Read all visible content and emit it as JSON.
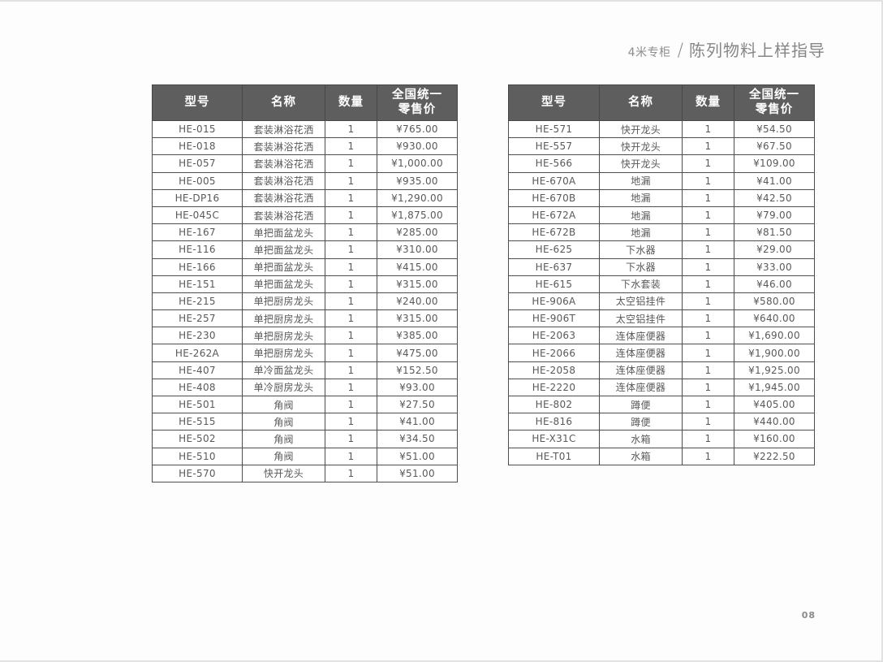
{
  "header": {
    "category": "4米专柜",
    "separator": "/",
    "title": "陈列物料上样指导"
  },
  "page_number": "08",
  "columns": {
    "model": "型号",
    "name": "名称",
    "qty": "数量",
    "price_line1": "全国统一",
    "price_line2": "零售价"
  },
  "colors": {
    "header_bg": "#5e5e5e",
    "header_text": "#ffffff",
    "grid_border": "#4d4d4d",
    "body_text": "#595959",
    "muted_text": "#8d8d8d"
  },
  "tables": [
    {
      "name": "left",
      "rows": [
        [
          "HE-015",
          "套装淋浴花洒",
          "1",
          "¥765.00"
        ],
        [
          "HE-018",
          "套装淋浴花洒",
          "1",
          "¥930.00"
        ],
        [
          "HE-057",
          "套装淋浴花洒",
          "1",
          "¥1,000.00"
        ],
        [
          "HE-005",
          "套装淋浴花洒",
          "1",
          "¥935.00"
        ],
        [
          "HE-DP16",
          "套装淋浴花洒",
          "1",
          "¥1,290.00"
        ],
        [
          "HE-045C",
          "套装淋浴花洒",
          "1",
          "¥1,875.00"
        ],
        [
          "HE-167",
          "单把面盆龙头",
          "1",
          "¥285.00"
        ],
        [
          "HE-116",
          "单把面盆龙头",
          "1",
          "¥310.00"
        ],
        [
          "HE-166",
          "单把面盆龙头",
          "1",
          "¥415.00"
        ],
        [
          "HE-151",
          "单把面盆龙头",
          "1",
          "¥315.00"
        ],
        [
          "HE-215",
          "单把厨房龙头",
          "1",
          "¥240.00"
        ],
        [
          "HE-257",
          "单把厨房龙头",
          "1",
          "¥315.00"
        ],
        [
          "HE-230",
          "单把厨房龙头",
          "1",
          "¥385.00"
        ],
        [
          "HE-262A",
          "单把厨房龙头",
          "1",
          "¥475.00"
        ],
        [
          "HE-407",
          "单冷面盆龙头",
          "1",
          "¥152.50"
        ],
        [
          "HE-408",
          "单冷厨房龙头",
          "1",
          "¥93.00"
        ],
        [
          "HE-501",
          "角阀",
          "1",
          "¥27.50"
        ],
        [
          "HE-515",
          "角阀",
          "1",
          "¥41.00"
        ],
        [
          "HE-502",
          "角阀",
          "1",
          "¥34.50"
        ],
        [
          "HE-510",
          "角阀",
          "1",
          "¥51.00"
        ],
        [
          "HE-570",
          "快开龙头",
          "1",
          "¥51.00"
        ]
      ]
    },
    {
      "name": "right",
      "rows": [
        [
          "HE-571",
          "快开龙头",
          "1",
          "¥54.50"
        ],
        [
          "HE-557",
          "快开龙头",
          "1",
          "¥67.50"
        ],
        [
          "HE-566",
          "快开龙头",
          "1",
          "¥109.00"
        ],
        [
          "HE-670A",
          "地漏",
          "1",
          "¥41.00"
        ],
        [
          "HE-670B",
          "地漏",
          "1",
          "¥42.50"
        ],
        [
          "HE-672A",
          "地漏",
          "1",
          "¥79.00"
        ],
        [
          "HE-672B",
          "地漏",
          "1",
          "¥81.50"
        ],
        [
          "HE-625",
          "下水器",
          "1",
          "¥29.00"
        ],
        [
          "HE-637",
          "下水器",
          "1",
          "¥33.00"
        ],
        [
          "HE-615",
          "下水套装",
          "1",
          "¥46.00"
        ],
        [
          "HE-906A",
          "太空铝挂件",
          "1",
          "¥580.00"
        ],
        [
          "HE-906T",
          "太空铝挂件",
          "1",
          "¥640.00"
        ],
        [
          "HE-2063",
          "连体座便器",
          "1",
          "¥1,690.00"
        ],
        [
          "HE-2066",
          "连体座便器",
          "1",
          "¥1,900.00"
        ],
        [
          "HE-2058",
          "连体座便器",
          "1",
          "¥1,925.00"
        ],
        [
          "HE-2220",
          "连体座便器",
          "1",
          "¥1,945.00"
        ],
        [
          "HE-802",
          "蹲便",
          "1",
          "¥405.00"
        ],
        [
          "HE-816",
          "蹲便",
          "1",
          "¥440.00"
        ],
        [
          "HE-X31C",
          "水箱",
          "1",
          "¥160.00"
        ],
        [
          "HE-T01",
          "水箱",
          "1",
          "¥222.50"
        ]
      ]
    }
  ]
}
